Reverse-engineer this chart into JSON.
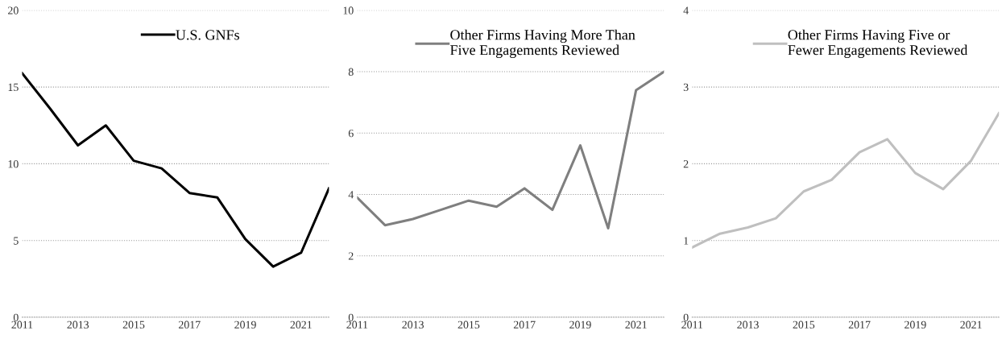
{
  "chart_data": [
    {
      "type": "line",
      "x": [
        2011,
        2012,
        2013,
        2014,
        2015,
        2016,
        2017,
        2018,
        2019,
        2020,
        2021,
        2022
      ],
      "xlim": [
        2011,
        2022
      ],
      "xticks": [
        2011,
        2013,
        2015,
        2017,
        2019,
        2021
      ],
      "ylim": [
        0,
        20
      ],
      "yticks": [
        0,
        5,
        10,
        15,
        20
      ],
      "grid": "y",
      "legend": "top",
      "series": [
        {
          "name": "U.S. GNFs",
          "color": "#000000",
          "values": [
            15.9,
            13.6,
            11.2,
            12.5,
            10.2,
            9.7,
            8.1,
            7.8,
            5.1,
            3.3,
            4.2,
            8.4
          ]
        }
      ]
    },
    {
      "type": "line",
      "x": [
        2011,
        2012,
        2013,
        2014,
        2015,
        2016,
        2017,
        2018,
        2019,
        2020,
        2021,
        2022
      ],
      "xlim": [
        2011,
        2022
      ],
      "xticks": [
        2011,
        2013,
        2015,
        2017,
        2019,
        2021
      ],
      "ylim": [
        0,
        10
      ],
      "yticks": [
        0,
        2,
        4,
        6,
        8,
        10
      ],
      "grid": "y",
      "legend": "top",
      "series": [
        {
          "name": "Other Firms Having More Than\nFive Engagements Reviewed",
          "color": "#7f7f7f",
          "values": [
            3.9,
            3.0,
            3.2,
            3.5,
            3.8,
            3.6,
            4.2,
            3.5,
            5.6,
            2.9,
            7.4,
            8.0
          ]
        }
      ]
    },
    {
      "type": "line",
      "x": [
        2011,
        2012,
        2013,
        2014,
        2015,
        2016,
        2017,
        2018,
        2019,
        2020,
        2021,
        2022
      ],
      "xlim": [
        2011,
        2022
      ],
      "xticks": [
        2011,
        2013,
        2015,
        2017,
        2019,
        2021
      ],
      "ylim": [
        0,
        4
      ],
      "yticks": [
        0,
        1,
        2,
        3,
        4
      ],
      "grid": "y",
      "legend": "top",
      "series": [
        {
          "name": "Other Firms Having Five or\nFewer Engagements Reviewed",
          "color": "#bfbfbf",
          "values": [
            0.91,
            1.09,
            1.17,
            1.29,
            1.64,
            1.79,
            2.15,
            2.32,
            1.88,
            1.67,
            2.04,
            2.66
          ]
        }
      ]
    }
  ]
}
